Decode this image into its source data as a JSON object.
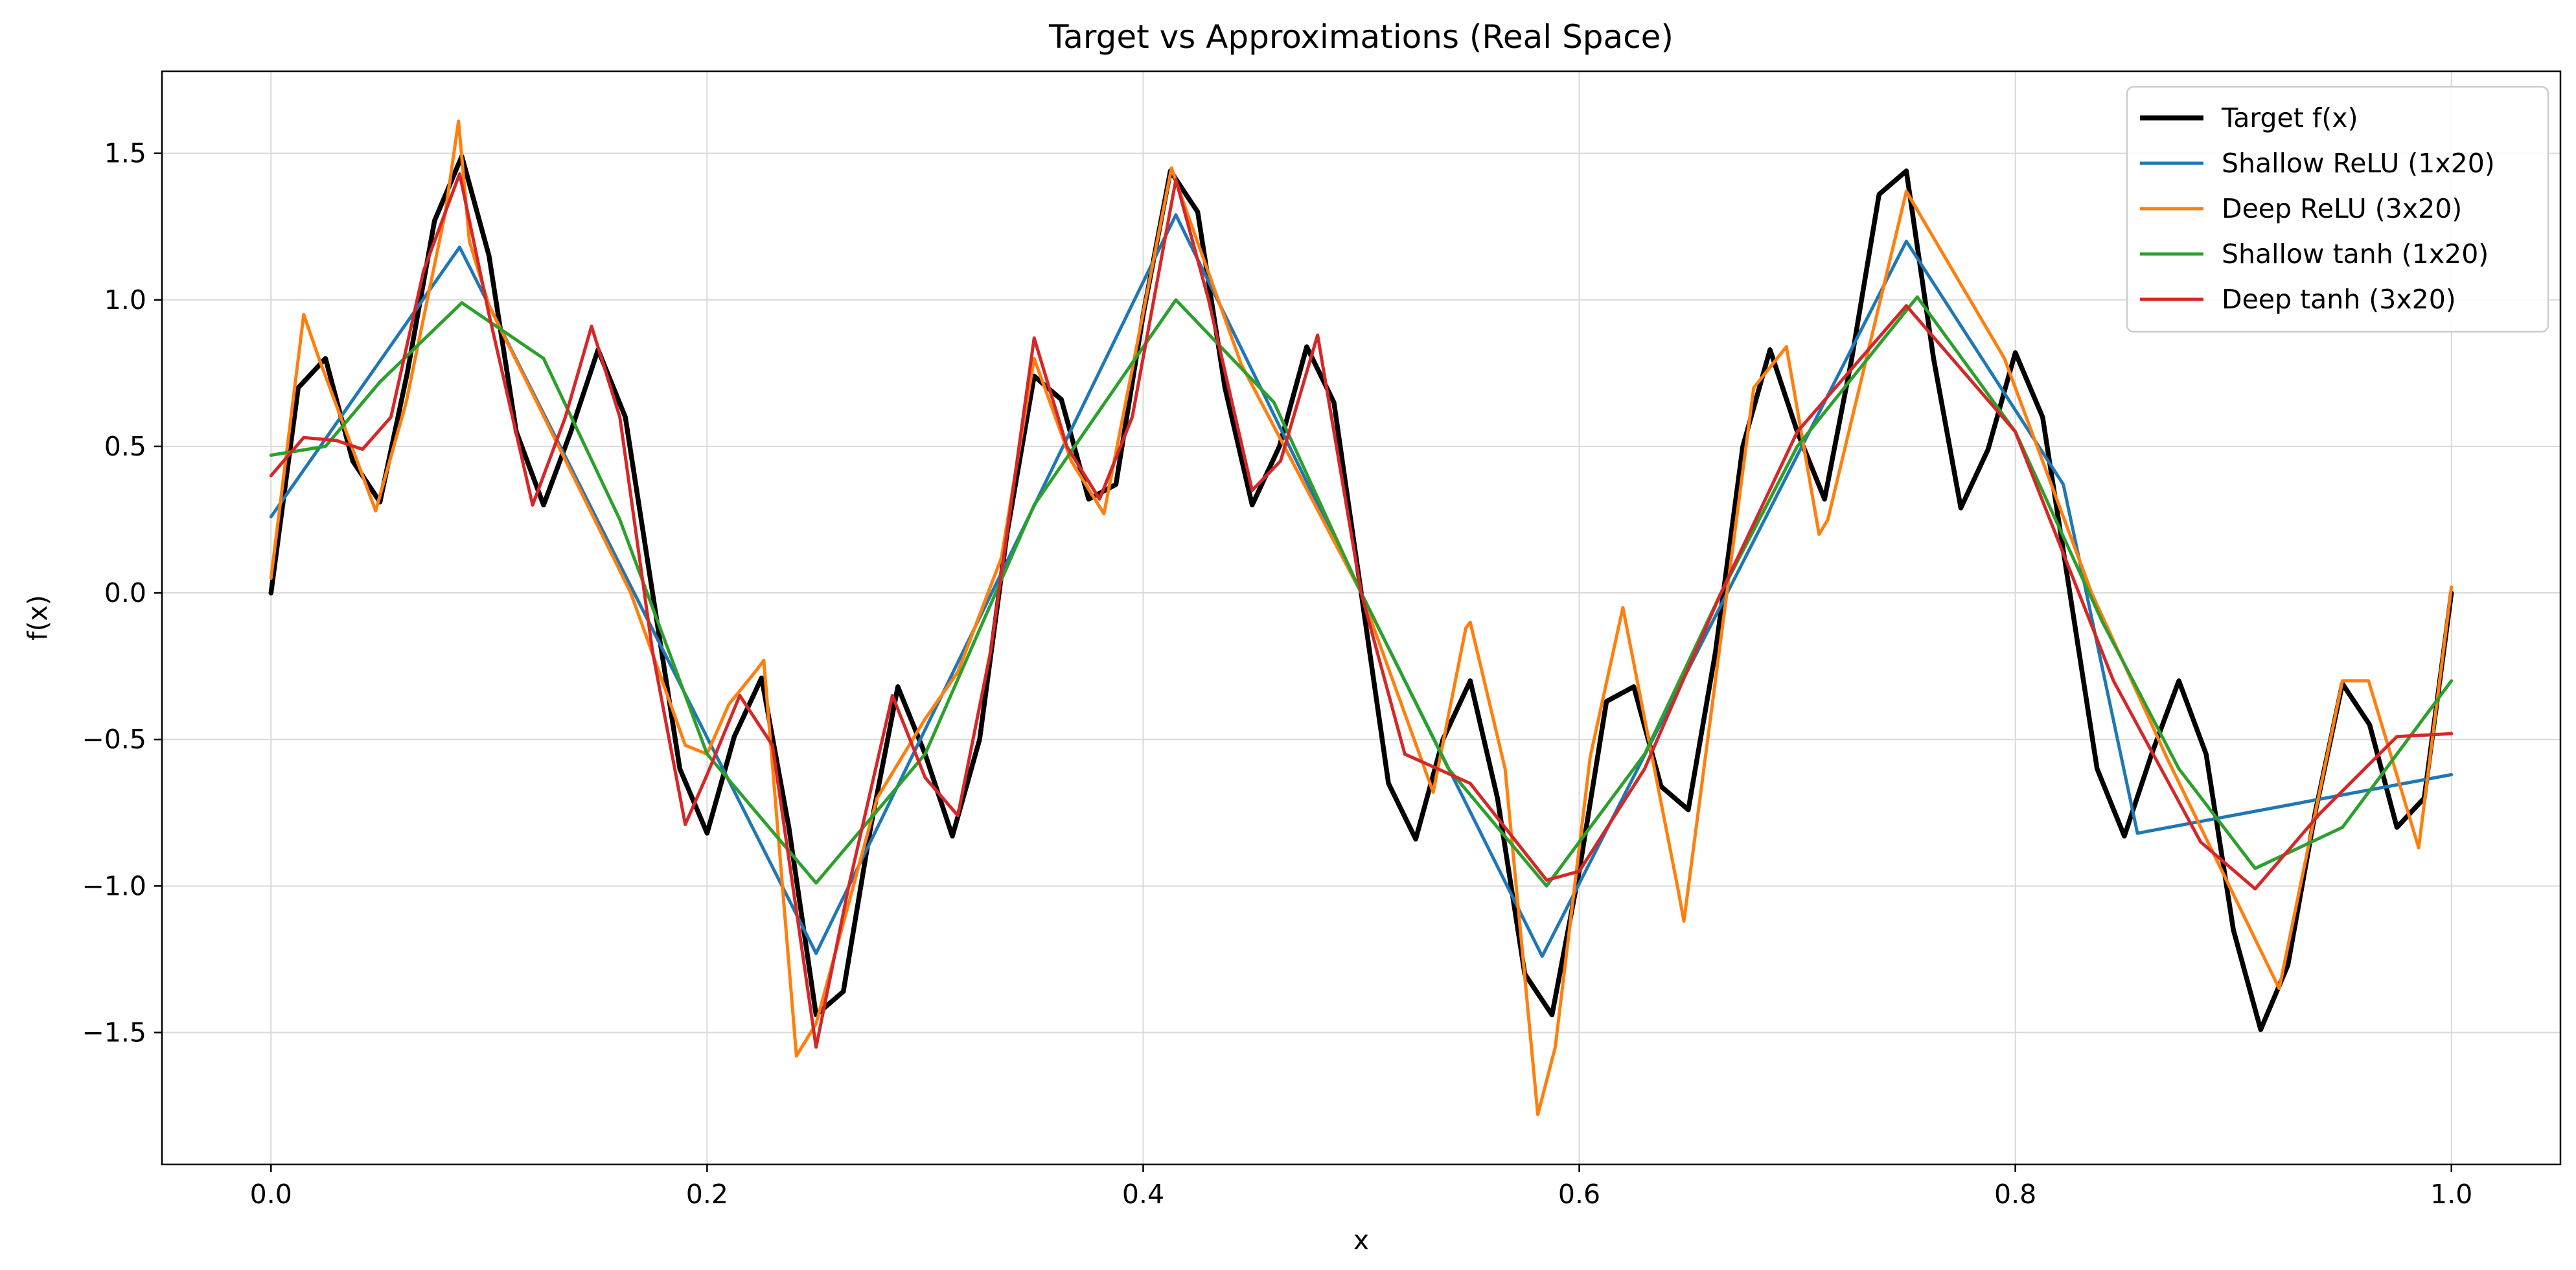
{
  "chart_data": {
    "type": "line",
    "title": "Target vs Approximations (Real Space)",
    "xlabel": "x",
    "ylabel": "f(x)",
    "xlim": [
      -0.05,
      1.05
    ],
    "ylim": [
      -1.95,
      1.78
    ],
    "xticks": [
      0.0,
      0.2,
      0.4,
      0.6,
      0.8,
      1.0
    ],
    "xtick_labels": [
      "0.0",
      "0.2",
      "0.4",
      "0.6",
      "0.8",
      "1.0"
    ],
    "yticks": [
      -1.5,
      -1.0,
      -0.5,
      0.0,
      0.5,
      1.0,
      1.5
    ],
    "ytick_labels": [
      "−1.5",
      "−1.0",
      "−0.5",
      "0.0",
      "0.5",
      "1.0",
      "1.5"
    ],
    "grid": true,
    "legend_position": "top-right",
    "series": [
      {
        "name": "Target f(x)",
        "color": "#000000",
        "width": "thick",
        "x": [
          0.0,
          0.0125,
          0.025,
          0.0375,
          0.05,
          0.0625,
          0.075,
          0.0875,
          0.1,
          0.1125,
          0.125,
          0.1375,
          0.15,
          0.1625,
          0.175,
          0.1875,
          0.2,
          0.2125,
          0.225,
          0.2375,
          0.25,
          0.2625,
          0.275,
          0.2875,
          0.3,
          0.3125,
          0.325,
          0.3375,
          0.35,
          0.3625,
          0.375,
          0.3875,
          0.4,
          0.4125,
          0.425,
          0.4375,
          0.45,
          0.4625,
          0.475,
          0.4875,
          0.5,
          0.5125,
          0.525,
          0.5375,
          0.55,
          0.5625,
          0.575,
          0.5875,
          0.6,
          0.6125,
          0.625,
          0.6375,
          0.65,
          0.6625,
          0.675,
          0.6875,
          0.7,
          0.7125,
          0.725,
          0.7375,
          0.75,
          0.7625,
          0.775,
          0.7875,
          0.8,
          0.8125,
          0.825,
          0.8375,
          0.85,
          0.8625,
          0.875,
          0.8875,
          0.9,
          0.9125,
          0.925,
          0.9375,
          0.95,
          0.9625,
          0.975,
          0.9875,
          1.0
        ],
        "y": [
          0.0,
          0.7,
          0.8,
          0.45,
          0.31,
          0.75,
          1.27,
          1.49,
          1.15,
          0.55,
          0.3,
          0.55,
          0.83,
          0.6,
          0.0,
          -0.6,
          -0.82,
          -0.49,
          -0.29,
          -0.8,
          -1.44,
          -1.36,
          -0.8,
          -0.32,
          -0.55,
          -0.83,
          -0.5,
          0.2,
          0.74,
          0.66,
          0.32,
          0.37,
          0.95,
          1.44,
          1.3,
          0.7,
          0.3,
          0.5,
          0.84,
          0.65,
          0.0,
          -0.65,
          -0.84,
          -0.5,
          -0.3,
          -0.7,
          -1.3,
          -1.44,
          -0.95,
          -0.37,
          -0.32,
          -0.66,
          -0.74,
          -0.2,
          0.5,
          0.83,
          0.55,
          0.32,
          0.8,
          1.36,
          1.44,
          0.8,
          0.29,
          0.49,
          0.82,
          0.6,
          0.0,
          -0.6,
          -0.83,
          -0.55,
          -0.3,
          -0.55,
          -1.15,
          -1.49,
          -1.27,
          -0.75,
          -0.31,
          -0.45,
          -0.8,
          -0.7,
          0.0
        ]
      },
      {
        "name": "Shallow ReLU (1x20)",
        "color": "#1f77b4",
        "width": "normal",
        "x": [
          0.0,
          0.0865,
          0.25,
          0.415,
          0.5,
          0.583,
          0.75,
          0.822,
          0.856,
          1.0
        ],
        "y": [
          0.26,
          1.18,
          -1.23,
          1.29,
          0.0,
          -1.24,
          1.2,
          0.37,
          -0.82,
          -0.62
        ]
      },
      {
        "name": "Deep ReLU (3x20)",
        "color": "#ff7f0e",
        "width": "normal",
        "x": [
          0.0,
          0.015,
          0.022,
          0.048,
          0.062,
          0.08,
          0.086,
          0.091,
          0.1,
          0.12,
          0.165,
          0.19,
          0.2,
          0.21,
          0.222,
          0.226,
          0.241,
          0.25,
          0.278,
          0.3,
          0.315,
          0.335,
          0.35,
          0.367,
          0.382,
          0.413,
          0.42,
          0.445,
          0.5,
          0.533,
          0.548,
          0.55,
          0.566,
          0.581,
          0.589,
          0.605,
          0.62,
          0.645,
          0.648,
          0.68,
          0.695,
          0.71,
          0.714,
          0.75,
          0.795,
          0.835,
          0.87,
          0.921,
          0.95,
          0.962,
          0.985,
          1.0
        ],
        "y": [
          0.05,
          0.95,
          0.8,
          0.28,
          0.65,
          1.3,
          1.61,
          1.2,
          0.98,
          0.68,
          0.0,
          -0.52,
          -0.55,
          -0.38,
          -0.27,
          -0.23,
          -1.58,
          -1.47,
          -0.7,
          -0.43,
          -0.27,
          0.12,
          0.8,
          0.45,
          0.27,
          1.45,
          1.3,
          0.78,
          0.0,
          -0.68,
          -0.12,
          -0.1,
          -0.6,
          -1.78,
          -1.55,
          -0.56,
          -0.05,
          -1.0,
          -1.12,
          0.7,
          0.84,
          0.2,
          0.25,
          1.37,
          0.8,
          0.0,
          -0.57,
          -1.35,
          -0.3,
          -0.3,
          -0.87,
          0.02
        ]
      },
      {
        "name": "Shallow tanh (1x20)",
        "color": "#2ca02c",
        "width": "normal",
        "x": [
          0.0,
          0.025,
          0.05,
          0.0875,
          0.125,
          0.16,
          0.2,
          0.25,
          0.3,
          0.35,
          0.415,
          0.46,
          0.5,
          0.54,
          0.585,
          0.63,
          0.665,
          0.7,
          0.755,
          0.8,
          0.84,
          0.875,
          0.91,
          0.95,
          1.0
        ],
        "y": [
          0.47,
          0.5,
          0.72,
          0.99,
          0.8,
          0.25,
          -0.55,
          -0.99,
          -0.55,
          0.3,
          1.0,
          0.65,
          0.0,
          -0.6,
          -1.0,
          -0.55,
          0.0,
          0.5,
          1.01,
          0.55,
          -0.1,
          -0.6,
          -0.94,
          -0.8,
          -0.3
        ]
      },
      {
        "name": "Deep tanh (3x20)",
        "color": "#d62728",
        "width": "normal",
        "x": [
          0.0,
          0.015,
          0.03,
          0.042,
          0.055,
          0.07,
          0.0865,
          0.1,
          0.12,
          0.135,
          0.147,
          0.16,
          0.175,
          0.19,
          0.2,
          0.215,
          0.23,
          0.25,
          0.265,
          0.285,
          0.3,
          0.315,
          0.33,
          0.35,
          0.365,
          0.38,
          0.395,
          0.415,
          0.43,
          0.45,
          0.463,
          0.48,
          0.5,
          0.52,
          0.55,
          0.585,
          0.6,
          0.63,
          0.665,
          0.7,
          0.75,
          0.8,
          0.845,
          0.885,
          0.91,
          0.94,
          0.975,
          1.0
        ],
        "y": [
          0.4,
          0.53,
          0.52,
          0.49,
          0.6,
          1.1,
          1.43,
          0.95,
          0.3,
          0.6,
          0.91,
          0.6,
          -0.2,
          -0.79,
          -0.62,
          -0.35,
          -0.52,
          -1.55,
          -1.0,
          -0.35,
          -0.63,
          -0.76,
          -0.2,
          0.87,
          0.5,
          0.32,
          0.6,
          1.41,
          1.0,
          0.35,
          0.45,
          0.88,
          0.0,
          -0.55,
          -0.65,
          -0.98,
          -0.95,
          -0.6,
          0.0,
          0.55,
          0.98,
          0.55,
          -0.3,
          -0.85,
          -1.01,
          -0.75,
          -0.49,
          -0.48
        ]
      }
    ]
  }
}
